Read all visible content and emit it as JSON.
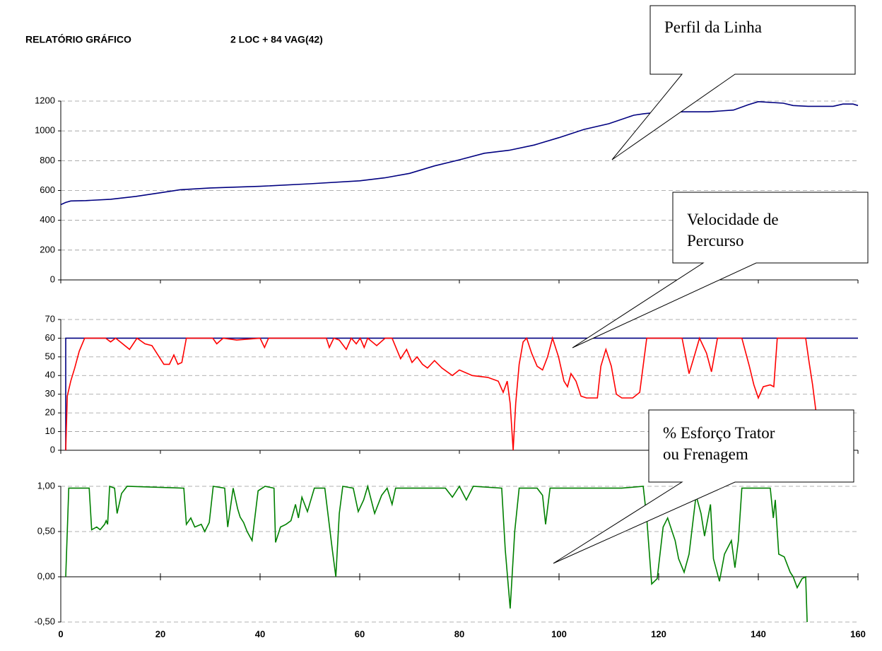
{
  "header": {
    "title": "RELATÓRIO GRÁFICO",
    "subtitle": "2 LOC + 84 VAG(42)"
  },
  "chart_data": [
    {
      "type": "line",
      "annotation_lines": [
        "Perfil da Linha"
      ],
      "xlim": [
        0,
        160
      ],
      "xticks": [
        0,
        20,
        40,
        60,
        80,
        100,
        120,
        140,
        160
      ],
      "ylim": [
        0,
        1200
      ],
      "yticks": [
        0,
        200,
        400,
        600,
        800,
        1000,
        1200
      ],
      "grid": true,
      "series": [
        {
          "color": "#000080",
          "x": [
            0,
            1,
            2,
            5,
            10,
            15,
            20,
            22,
            24,
            30,
            40,
            50,
            60,
            65,
            70,
            75,
            80,
            85,
            90,
            95,
            100,
            105,
            110,
            115,
            117,
            120,
            125,
            130,
            135,
            138,
            140,
            145,
            147,
            150,
            155,
            157,
            159,
            160
          ],
          "values": [
            505,
            520,
            530,
            532,
            541,
            560,
            585,
            595,
            605,
            617,
            628,
            645,
            665,
            685,
            715,
            765,
            806,
            850,
            870,
            905,
            955,
            1010,
            1048,
            1105,
            1115,
            1125,
            1128,
            1128,
            1140,
            1176,
            1196,
            1186,
            1170,
            1165,
            1165,
            1180,
            1180,
            1170
          ]
        }
      ]
    },
    {
      "type": "line",
      "annotation_lines": [
        "Velocidade de",
        "Percurso"
      ],
      "xlim": [
        0,
        160
      ],
      "xticks": [
        0,
        20,
        40,
        60,
        80,
        100,
        120,
        140,
        160
      ],
      "ylim": [
        0,
        70
      ],
      "yticks": [
        0,
        10,
        20,
        30,
        40,
        50,
        60,
        70
      ],
      "grid": true,
      "series": [
        {
          "color": "#000080",
          "x": [
            1,
            1,
            160
          ],
          "values": [
            0,
            60,
            60
          ]
        },
        {
          "color": "#ff0000",
          "x": [
            1,
            1.3,
            2,
            2.8,
            3.7,
            4.8,
            9,
            10,
            11,
            13.8,
            15.3,
            16.9,
            18.3,
            20.7,
            21.8,
            22.7,
            23.5,
            24.3,
            25.2,
            30.5,
            31.3,
            32.6,
            35.3,
            40,
            40.9,
            41.7,
            53.3,
            53.9,
            54.8,
            55.9,
            57.3,
            58.3,
            59.3,
            60.1,
            60.9,
            61.6,
            63.4,
            65.1,
            66.5,
            68.2,
            69.4,
            70.5,
            71.5,
            72.6,
            73.6,
            75,
            76.5,
            78.6,
            80,
            82.6,
            85.7,
            87.8,
            88.8,
            89.6,
            90.2,
            90.8,
            91.3,
            92,
            92.8,
            93.5,
            94.5,
            95.6,
            96.7,
            97.7,
            98.7,
            99.9,
            101,
            101.7,
            102.4,
            103.4,
            104.4,
            105.5,
            107.7,
            108.4,
            109.4,
            110.5,
            111.5,
            112.6,
            114.8,
            116.2,
            117.6,
            124.7,
            126.1,
            127.1,
            128.2,
            129.6,
            130.6,
            131.8,
            136.7,
            138.2,
            139.1,
            140,
            141,
            142.4,
            143.1,
            143.8,
            149.5,
            150.2,
            150.9,
            151.6
          ],
          "values": [
            0,
            29,
            37,
            44,
            53,
            60,
            60,
            58,
            60,
            54,
            60,
            57,
            56,
            46,
            46,
            51,
            46,
            47,
            60,
            60,
            57,
            60,
            59,
            60,
            55,
            60,
            60,
            55,
            60,
            59,
            54,
            60,
            57,
            60,
            55,
            60,
            56,
            60,
            60,
            49,
            54,
            47,
            50,
            46,
            44,
            48,
            44,
            40,
            43,
            40,
            39,
            37,
            31,
            37,
            25,
            0,
            25,
            46,
            58,
            60,
            52,
            45,
            43,
            50,
            60,
            50,
            37,
            34,
            41,
            37,
            29,
            28,
            28,
            45,
            54,
            45,
            30,
            28,
            28,
            31,
            60,
            60,
            41,
            50,
            60,
            52,
            42,
            60,
            60,
            45,
            35,
            28,
            34,
            35,
            34,
            60,
            60,
            47,
            35,
            20
          ]
        }
      ]
    },
    {
      "type": "line",
      "annotation_lines": [
        "% Esforço Trator",
        "ou Frenagem"
      ],
      "xlim": [
        0,
        160
      ],
      "xticks": [
        0,
        20,
        40,
        60,
        80,
        100,
        120,
        140,
        160
      ],
      "ylim": [
        -0.5,
        1.0
      ],
      "yticks": [
        {
          "value": -0.5,
          "label": "-0,50"
        },
        {
          "value": 0,
          "label": "0,00"
        },
        {
          "value": 0.5,
          "label": "0,50"
        },
        {
          "value": 1.0,
          "label": "1,00"
        }
      ],
      "grid": true,
      "series": [
        {
          "color": "#008000",
          "x": [
            1,
            1.6,
            5.7,
            6.2,
            7.2,
            7.9,
            8.8,
            9.1,
            9.4,
            9.8,
            10.8,
            11.3,
            12.2,
            13.3,
            24.7,
            25.2,
            26.1,
            26.9,
            28.2,
            28.9,
            29.8,
            30.6,
            32.9,
            33.5,
            34.6,
            35.5,
            36,
            36.7,
            37.4,
            38.4,
            39.6,
            41,
            42.8,
            43.1,
            44.1,
            45.2,
            46.2,
            47.1,
            47.7,
            48.4,
            49.5,
            50.9,
            53,
            54.5,
            55.2,
            55.9,
            56.6,
            58.7,
            59.7,
            60.8,
            61.6,
            63,
            64.4,
            65.5,
            66.5,
            67.2,
            77.2,
            78.6,
            80,
            81.4,
            82.8,
            88.5,
            89.2,
            90.2,
            91.1,
            92,
            95.6,
            96.7,
            97.3,
            98.2,
            112.6,
            116.9,
            117.6,
            118.6,
            119.7,
            120.9,
            121.8,
            123.3,
            124,
            125.1,
            126.1,
            127.5,
            128.5,
            129.2,
            130.4,
            131,
            132.2,
            133.2,
            134.6,
            135.3,
            136,
            136.7,
            142.4,
            143,
            143.4,
            144.1,
            145.2,
            146.4,
            147,
            147.8,
            148.8,
            149.5,
            149.8
          ],
          "values": [
            0,
            0.98,
            0.98,
            0.52,
            0.55,
            0.52,
            0.58,
            0.62,
            0.58,
            1.0,
            0.98,
            0.7,
            0.92,
            1.0,
            0.98,
            0.58,
            0.65,
            0.55,
            0.58,
            0.5,
            0.6,
            1.0,
            0.98,
            0.55,
            0.98,
            0.75,
            0.66,
            0.6,
            0.5,
            0.4,
            0.95,
            1.0,
            0.98,
            0.38,
            0.55,
            0.58,
            0.62,
            0.8,
            0.65,
            0.88,
            0.72,
            0.98,
            0.98,
            0.3,
            0.0,
            0.7,
            1.0,
            0.98,
            0.72,
            0.85,
            1.0,
            0.7,
            0.9,
            0.98,
            0.8,
            0.98,
            0.98,
            0.88,
            1.0,
            0.85,
            1.0,
            0.98,
            0.3,
            -0.35,
            0.5,
            0.98,
            0.98,
            0.9,
            0.58,
            0.98,
            0.98,
            1.0,
            0.65,
            -0.08,
            -0.02,
            0.55,
            0.65,
            0.4,
            0.2,
            0.05,
            0.25,
            0.9,
            0.7,
            0.45,
            0.8,
            0.2,
            -0.05,
            0.25,
            0.4,
            0.1,
            0.4,
            0.98,
            0.98,
            0.65,
            0.85,
            0.25,
            0.22,
            0.05,
            0.0,
            -0.12,
            -0.02,
            0.0,
            -0.5
          ]
        }
      ]
    }
  ]
}
